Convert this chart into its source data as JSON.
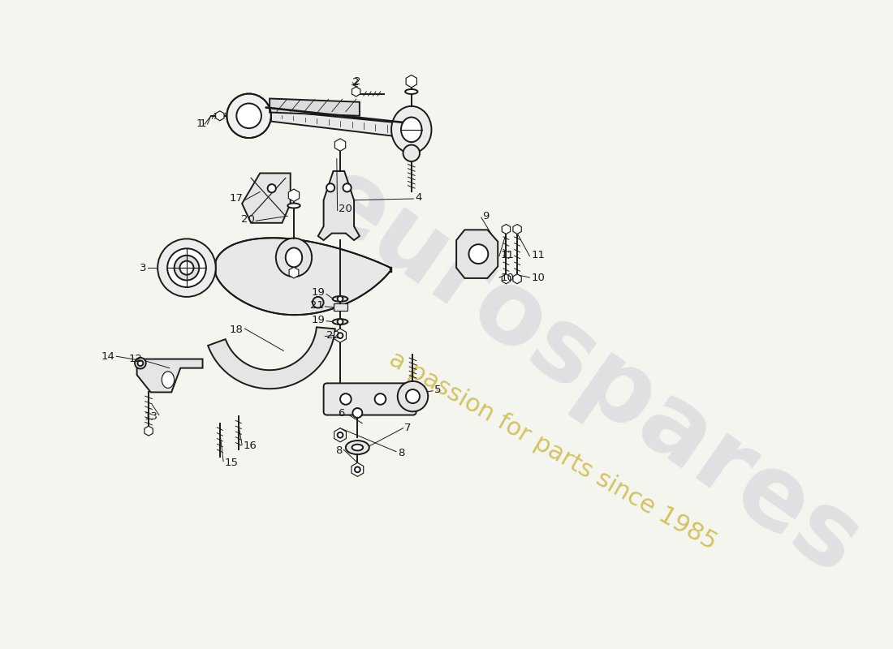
{
  "bg": "#f5f5f0",
  "lc": "#1a1a1a",
  "lw": 1.4,
  "lt": 0.85,
  "fs": 9.5,
  "wm1": "eurospares",
  "wm2": "a passion for parts since 1985",
  "wm1_color": "#d0d0d8",
  "wm2_color": "#c8b030",
  "wm1_alpha": 0.55,
  "wm2_alpha": 0.72
}
